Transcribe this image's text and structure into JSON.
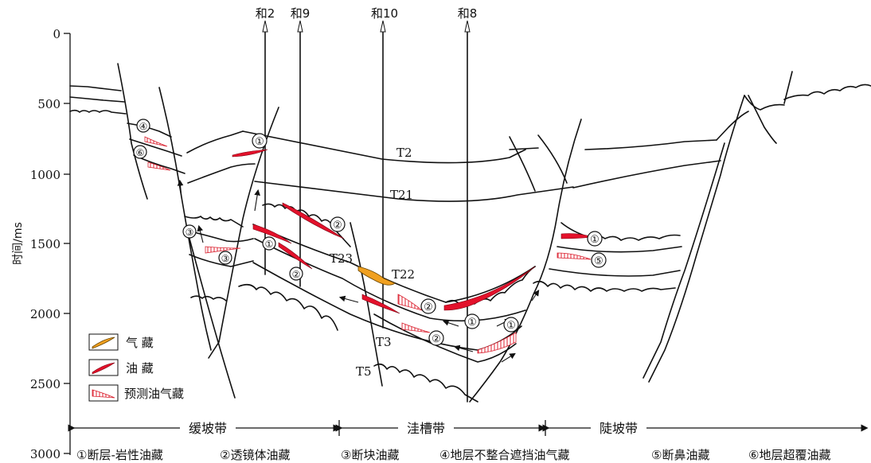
{
  "y_axis": {
    "label": "时间/ms",
    "ticks": [
      "0",
      "500",
      "1000",
      "1500",
      "2000",
      "2500",
      "3000"
    ]
  },
  "wells": [
    "和2",
    "和9",
    "和10",
    "和8"
  ],
  "horizons": [
    "T2",
    "T21",
    "T22",
    "T23",
    "T3",
    "T5"
  ],
  "legend": {
    "gas": "气  藏",
    "oil": "油  藏",
    "predicted": "预测油气藏"
  },
  "zones": [
    "缓坡带",
    "洼槽带",
    "陡坡带"
  ],
  "trap_types": [
    {
      "num": "①",
      "label": "断层-岩性油藏"
    },
    {
      "num": "②",
      "label": "透镜体油藏"
    },
    {
      "num": "③",
      "label": "断块油藏"
    },
    {
      "num": "④",
      "label": "地层不整合遮挡油气藏"
    },
    {
      "num": "⑤",
      "label": "断鼻油藏"
    },
    {
      "num": "⑥",
      "label": "地层超覆油藏"
    }
  ],
  "markers": {
    "m1": "①",
    "m2": "②",
    "m3": "③",
    "m4": "④",
    "m5": "⑤",
    "m6": "⑥"
  }
}
